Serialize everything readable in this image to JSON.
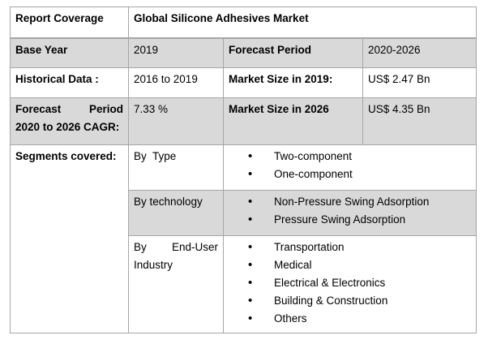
{
  "header": {
    "label": "Report Coverage",
    "title": "Global Silicone Adhesives Market"
  },
  "rows": {
    "base_year": {
      "label": "Base Year",
      "value": "2019",
      "label2": "Forecast Period",
      "value2": "2020-2026"
    },
    "historical": {
      "label": "Historical Data :",
      "value": "2016 to 2019",
      "label2": "Market Size in 2019:",
      "value2": "US$ 2.47 Bn"
    },
    "cagr": {
      "label_a": "Forecast",
      "label_b": "Period",
      "label_c": "2020 to 2026 CAGR:",
      "value": "7.33 %",
      "label2": "Market Size in 2026",
      "value2": "US$ 4.35 Bn"
    }
  },
  "segments": {
    "label": "Segments covered:",
    "groups": [
      {
        "name": "By  Type",
        "items": [
          "Two-component",
          "One-component"
        ]
      },
      {
        "name": "By technology",
        "items": [
          "Non-Pressure Swing Adsorption",
          "Pressure Swing Adsorption"
        ]
      },
      {
        "name_a": "By",
        "name_b": "End-User",
        "name_c": "Industry",
        "items": [
          "Transportation",
          "Medical",
          "Electrical & Electronics",
          "Building & Construction",
          "Others"
        ]
      }
    ]
  }
}
